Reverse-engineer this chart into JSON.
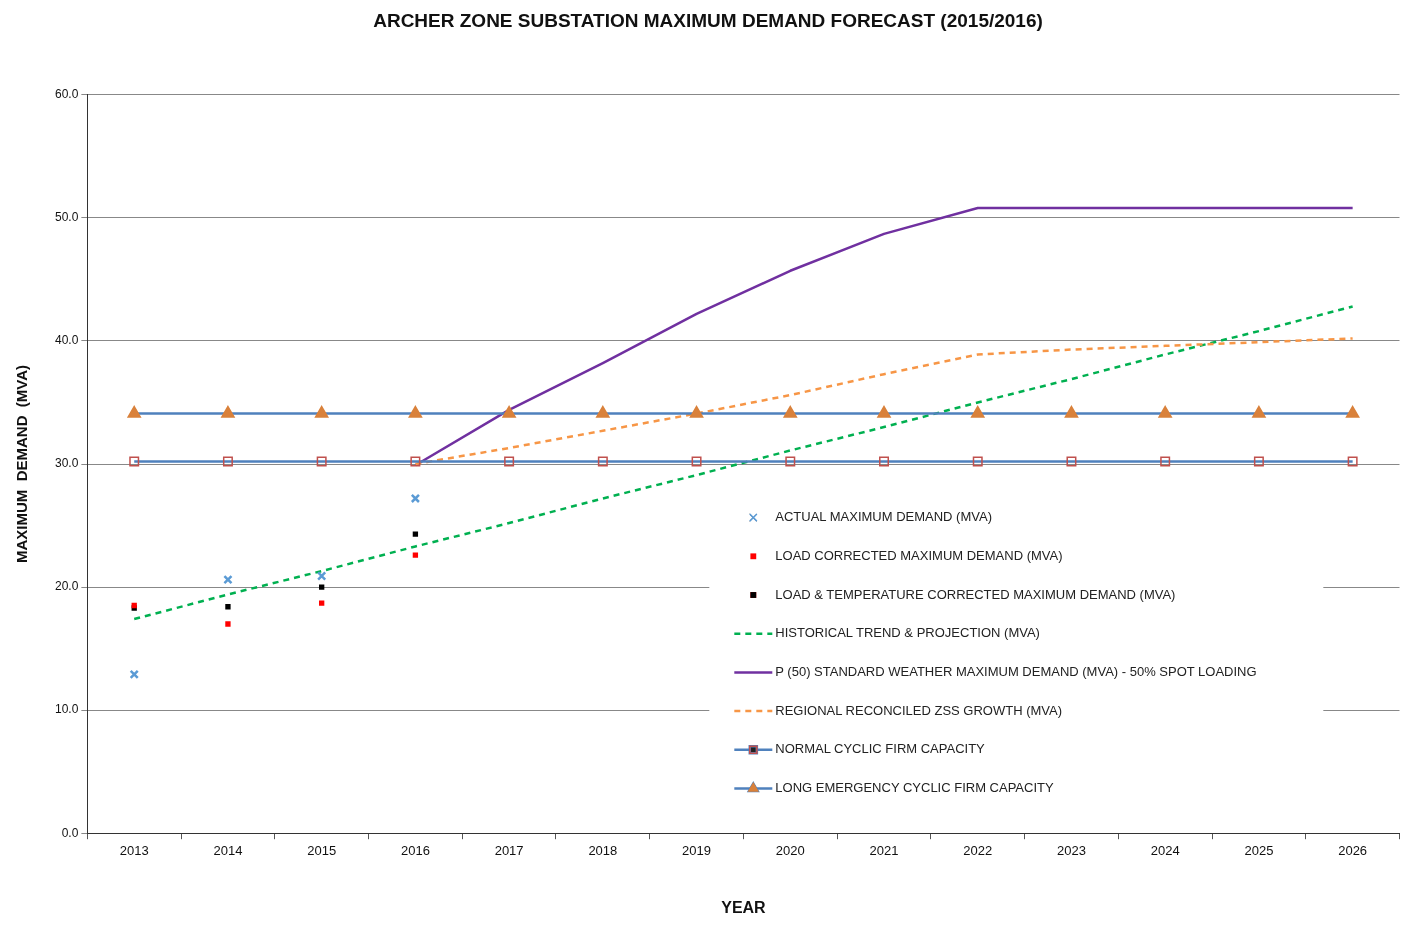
{
  "chart_data": {
    "type": "line",
    "title": "ARCHER ZONE SUBSTATION MAXIMUM DEMAND FORECAST (2015/2016)",
    "xlabel": "YEAR",
    "ylabel": "MAXIMUM  DEMAND  (MVA)",
    "categories": [
      "2013",
      "2014",
      "2015",
      "2016",
      "2017",
      "2018",
      "2019",
      "2020",
      "2021",
      "2022",
      "2023",
      "2024",
      "2025",
      "2026"
    ],
    "ylim": [
      0,
      60
    ],
    "yticks": [
      {
        "value": 0,
        "label": "0.0"
      },
      {
        "value": 10,
        "label": "10.0"
      },
      {
        "value": 20,
        "label": "20.0"
      },
      {
        "value": 30,
        "label": "30.0"
      },
      {
        "value": 40,
        "label": "40.0"
      },
      {
        "value": 50,
        "label": "50.0"
      },
      {
        "value": 60,
        "label": "60.0"
      }
    ],
    "grid": "y",
    "legend": "bottom right",
    "series": [
      {
        "name": "ACTUAL MAXIMUM DEMAND (MVA)",
        "type": "scatter",
        "marker": "cross",
        "color": "#5b9bd5",
        "values": [
          12.9,
          20.6,
          20.9,
          27.2,
          null,
          null,
          null,
          null,
          null,
          null,
          null,
          null,
          null,
          null
        ]
      },
      {
        "name": "LOAD CORRECTED MAXIMUM DEMAND (MVA)",
        "type": "scatter",
        "color": "#ff0000",
        "values": [
          18.5,
          17.0,
          18.7,
          22.6,
          null,
          null,
          null,
          null,
          null,
          null,
          null,
          null,
          null,
          null
        ]
      },
      {
        "name": "LOAD & TEMPERATURE CORRECTED MAXIMUM DEMAND (MVA)",
        "type": "scatter",
        "color": "#000000",
        "values": [
          18.3,
          18.4,
          20.0,
          24.3,
          null,
          null,
          null,
          null,
          null,
          null,
          null,
          null,
          null,
          null
        ]
      },
      {
        "name": "HISTORICAL TREND & PROJECTION (MVA)",
        "type": "line",
        "line_style": "dashed",
        "marker": "none",
        "color": "#00b050",
        "values": [
          17.4,
          19.4,
          21.3,
          23.3,
          25.2,
          27.2,
          29.1,
          31.1,
          33.0,
          35.0,
          36.9,
          38.9,
          40.8,
          42.8
        ]
      },
      {
        "name": "P (50) STANDARD WEATHER MAXIMUM DEMAND (MVA) - 50% SPOT LOADING",
        "type": "line",
        "line_style": "solid",
        "marker": "none",
        "color": "#7030a0",
        "values": [
          null,
          null,
          null,
          29.9,
          34.4,
          38.2,
          42.2,
          45.7,
          48.7,
          50.8,
          50.8,
          50.8,
          50.8,
          50.8
        ]
      },
      {
        "name": "REGIONAL RECONCILED ZSS GROWTH (MVA)",
        "type": "line",
        "line_style": "dashed",
        "marker": "none",
        "color": "#f79646",
        "values": [
          null,
          null,
          null,
          30.0,
          31.3,
          32.7,
          34.1,
          35.6,
          37.3,
          38.9,
          39.3,
          39.6,
          39.9,
          40.2
        ]
      },
      {
        "name": "NORMAL CYCLIC FIRM CAPACITY",
        "type": "line",
        "line_style": "solid",
        "marker": "square",
        "color": "#4f81bd",
        "values": [
          30.2,
          30.2,
          30.2,
          30.2,
          30.2,
          30.2,
          30.2,
          30.2,
          30.2,
          30.2,
          30.2,
          30.2,
          30.2,
          30.2
        ]
      },
      {
        "name": "LONG EMERGENCY CYCLIC FIRM CAPACITY",
        "type": "line",
        "line_style": "solid",
        "marker": "triangle",
        "color": "#4f81bd",
        "values": [
          34.1,
          34.1,
          34.1,
          34.1,
          34.1,
          34.1,
          34.1,
          34.1,
          34.1,
          34.1,
          34.1,
          34.1,
          34.1,
          34.1
        ]
      }
    ]
  }
}
